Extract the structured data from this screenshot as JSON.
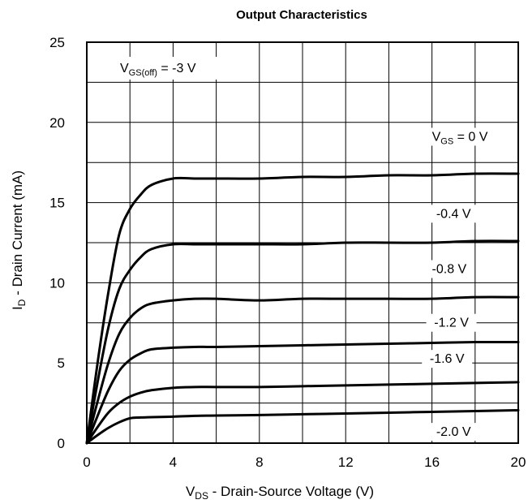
{
  "chart_data": {
    "type": "line",
    "title": "Output Characteristics",
    "xlabel": {
      "main": "V",
      "sub": "DS",
      "rest": " - Drain-Source Voltage (V)"
    },
    "ylabel": {
      "main": "I",
      "sub": "D",
      "rest": " - Drain Current (mA)"
    },
    "xlim": [
      0,
      20
    ],
    "ylim": [
      0,
      25
    ],
    "xticks": [
      0,
      4,
      8,
      12,
      16,
      20
    ],
    "yticks": [
      0,
      5,
      10,
      15,
      20,
      25
    ],
    "grid": true,
    "annotation": {
      "main": "V",
      "sub": "GS(off)",
      "rest": " = -3 V"
    },
    "x": [
      0,
      0.5,
      1,
      1.5,
      2,
      2.5,
      3,
      4,
      5,
      6,
      8,
      10,
      12,
      14,
      16,
      18,
      20
    ],
    "series": [
      {
        "label_main": "V",
        "label_sub": "GS",
        "label_rest": " = 0 V",
        "values": [
          0,
          5.0,
          9.4,
          13.0,
          14.6,
          15.5,
          16.1,
          16.5,
          16.5,
          16.5,
          16.5,
          16.6,
          16.6,
          16.7,
          16.7,
          16.8,
          16.8
        ]
      },
      {
        "label_main": "-0.4 V",
        "label_sub": "",
        "label_rest": "",
        "values": [
          0,
          3.8,
          7.2,
          9.6,
          10.8,
          11.6,
          12.1,
          12.4,
          12.4,
          12.4,
          12.4,
          12.4,
          12.5,
          12.5,
          12.5,
          12.6,
          12.6
        ]
      },
      {
        "label_main": "-0.8 V",
        "label_sub": "",
        "label_rest": "",
        "values": [
          0,
          2.6,
          5.0,
          6.8,
          7.8,
          8.4,
          8.7,
          8.9,
          9.0,
          9.0,
          8.9,
          9.0,
          9.0,
          9.0,
          9.0,
          9.1,
          9.1
        ]
      },
      {
        "label_main": "-1.2 V",
        "label_sub": "",
        "label_rest": "",
        "values": [
          0,
          1.7,
          3.3,
          4.5,
          5.2,
          5.6,
          5.85,
          5.95,
          6.0,
          6.0,
          6.05,
          6.1,
          6.15,
          6.2,
          6.25,
          6.3,
          6.3
        ]
      },
      {
        "label_main": "-1.6 V",
        "label_sub": "",
        "label_rest": "",
        "values": [
          0,
          1.0,
          1.9,
          2.5,
          2.9,
          3.15,
          3.3,
          3.45,
          3.5,
          3.5,
          3.5,
          3.55,
          3.6,
          3.65,
          3.7,
          3.75,
          3.8
        ]
      },
      {
        "label_main": "-2.0 V",
        "label_sub": "",
        "label_rest": "",
        "values": [
          0,
          0.5,
          0.95,
          1.3,
          1.55,
          1.6,
          1.62,
          1.65,
          1.7,
          1.72,
          1.75,
          1.8,
          1.85,
          1.9,
          1.95,
          2.0,
          2.05
        ]
      }
    ]
  }
}
